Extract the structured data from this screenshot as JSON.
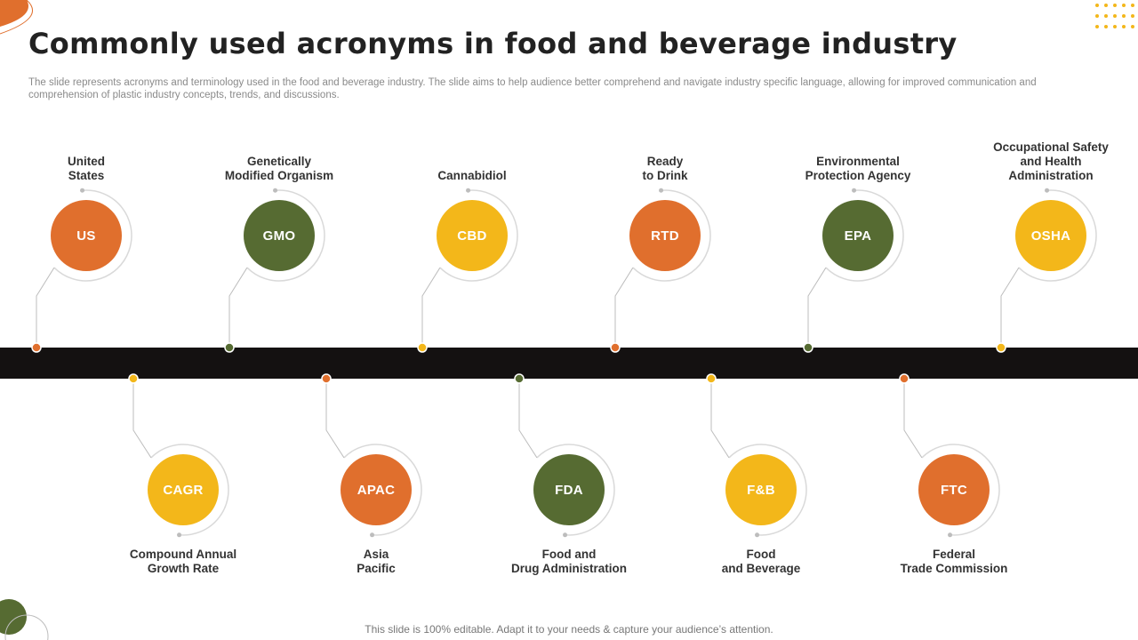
{
  "title": "Commonly used acronyms in food and beverage industry",
  "subtitle": "The slide represents acronyms and terminology used in the food and beverage industry. The slide aims to help audience better comprehend and navigate industry specific language, allowing for improved communication and comprehension of plastic industry concepts, trends, and discussions.",
  "footer": "This slide is 100% editable. Adapt it to your needs & capture your audience’s attention.",
  "colors": {
    "orange": "#E06F2D",
    "green": "#566B32",
    "yellow": "#F3B71A",
    "bar": "#141111",
    "ring": "#d9d9d9"
  },
  "top_items": [
    {
      "acronym": "US",
      "label": "United\nStates",
      "color": "orange"
    },
    {
      "acronym": "GMO",
      "label": "Genetically\nModified Organism",
      "color": "green"
    },
    {
      "acronym": "CBD",
      "label": "Cannabidiol",
      "color": "yellow"
    },
    {
      "acronym": "RTD",
      "label": "Ready\nto Drink",
      "color": "orange"
    },
    {
      "acronym": "EPA",
      "label": "Environmental\nProtection Agency",
      "color": "green"
    },
    {
      "acronym": "OSHA",
      "label": "Occupational Safety\nand Health\nAdministration",
      "color": "yellow"
    }
  ],
  "bottom_items": [
    {
      "acronym": "CAGR",
      "label": "Compound Annual\nGrowth Rate",
      "color": "yellow"
    },
    {
      "acronym": "APAC",
      "label": "Asia\nPacific",
      "color": "orange"
    },
    {
      "acronym": "FDA",
      "label": "Food and\nDrug Administration",
      "color": "green"
    },
    {
      "acronym": "F&B",
      "label": "Food\nand Beverage",
      "color": "yellow"
    },
    {
      "acronym": "FTC",
      "label": "Federal\nTrade Commission",
      "color": "orange"
    }
  ]
}
